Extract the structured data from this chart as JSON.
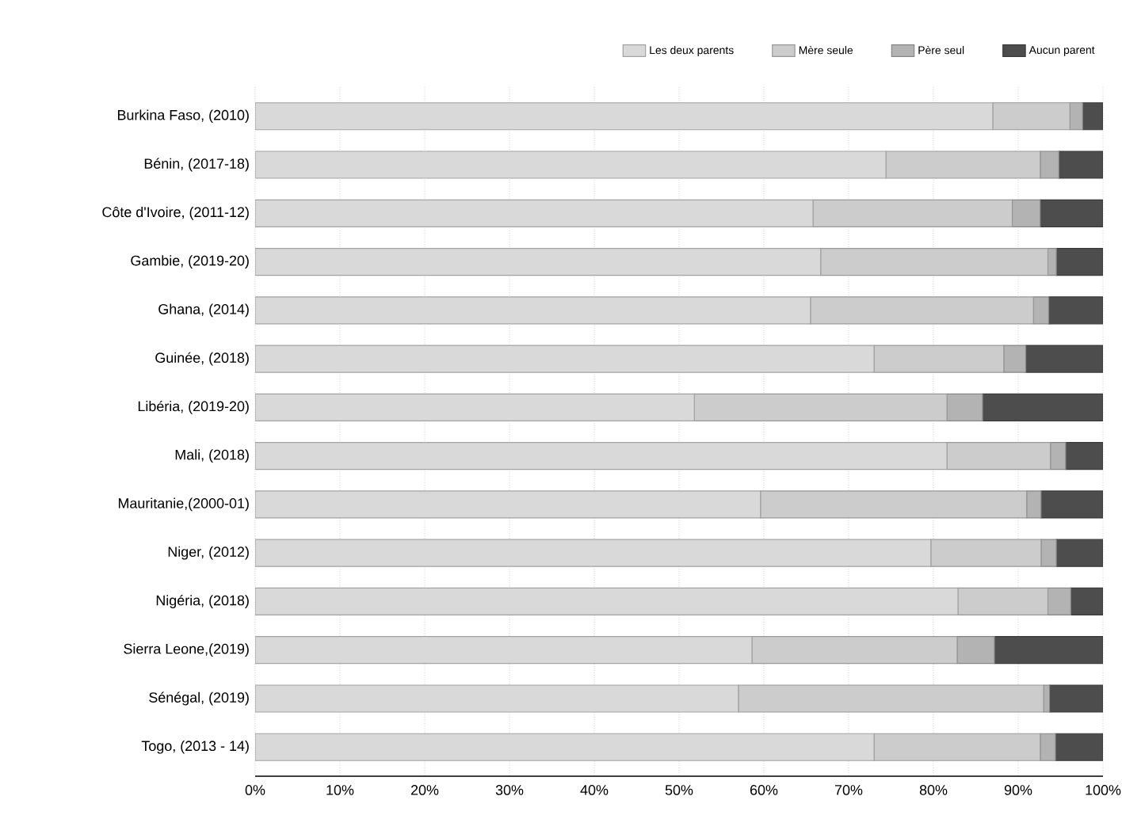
{
  "chart_data": {
    "type": "bar",
    "orientation": "horizontal",
    "stacked": true,
    "categories": [
      "Burkina Faso, (2010)",
      "Bénin, (2017-18)",
      "Côte d'Ivoire, (2011-12)",
      "Gambie, (2019-20)",
      "Ghana, (2014)",
      "Guinée, (2018)",
      "Libéria, (2019-20)",
      "Mali, (2018)",
      "Mauritanie,(2000-01)",
      "Niger, (2012)",
      "Nigéria, (2018)",
      "Sierra Leone,(2019)",
      "Sénégal, (2019)",
      "Togo, (2013 - 14)"
    ],
    "series": [
      {
        "name": "Les deux parents",
        "color": "#d9d9d9",
        "values": [
          87.0,
          74.4,
          65.8,
          66.7,
          65.5,
          73.0,
          51.8,
          81.6,
          59.6,
          79.7,
          82.9,
          58.6,
          57.0,
          73.0
        ]
      },
      {
        "name": "Mère seule",
        "color": "#cccccc",
        "values": [
          9.1,
          18.2,
          23.5,
          26.8,
          26.3,
          15.3,
          29.8,
          12.2,
          31.4,
          13.0,
          10.6,
          24.2,
          36.0,
          19.6
        ]
      },
      {
        "name": "Père seul",
        "color": "#b3b3b3",
        "values": [
          1.5,
          2.2,
          3.3,
          1.0,
          1.8,
          2.6,
          4.2,
          1.8,
          1.7,
          1.8,
          2.7,
          4.4,
          0.7,
          1.8
        ]
      },
      {
        "name": "Aucun parent",
        "color": "#4d4d4d",
        "values": [
          2.4,
          5.2,
          7.4,
          5.5,
          6.4,
          9.1,
          14.2,
          4.4,
          7.3,
          5.5,
          3.8,
          12.8,
          6.3,
          5.6
        ]
      }
    ],
    "xlim": [
      0,
      100
    ],
    "xticks": [
      {
        "value": 0,
        "label": "0%"
      },
      {
        "value": 10,
        "label": "10%"
      },
      {
        "value": 20,
        "label": "20%"
      },
      {
        "value": 30,
        "label": "30%"
      },
      {
        "value": 40,
        "label": "40%"
      },
      {
        "value": 50,
        "label": "50%"
      },
      {
        "value": 60,
        "label": "60%"
      },
      {
        "value": 70,
        "label": "70%"
      },
      {
        "value": 80,
        "label": "80%"
      },
      {
        "value": 90,
        "label": "90%"
      },
      {
        "value": 100,
        "label": "100%"
      }
    ],
    "grid": "x",
    "legend": "top right"
  }
}
